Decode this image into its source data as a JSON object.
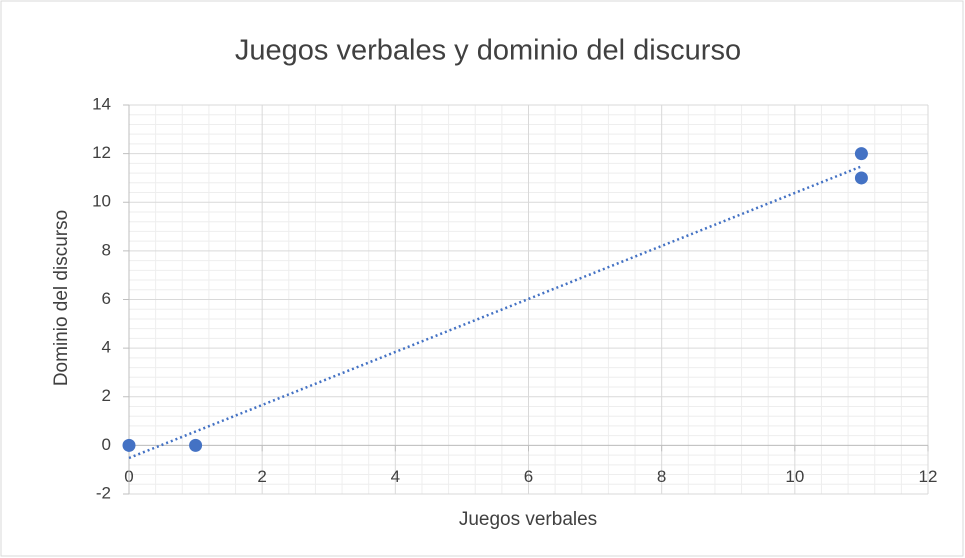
{
  "chart_data": {
    "type": "scatter",
    "title": "Juegos verbales y dominio del discurso",
    "x_label": "Juegos verbales",
    "y_label": "Dominio del discurso",
    "x": [
      0,
      1,
      11,
      11
    ],
    "values": [
      0,
      0,
      12,
      11
    ],
    "color": "#4472c4",
    "xlim": [
      0,
      12
    ],
    "xticks": [
      0,
      2,
      4,
      6,
      8,
      10,
      12
    ],
    "ylim": [
      -2,
      14
    ],
    "yticks": [
      -2,
      0,
      2,
      4,
      6,
      8,
      10,
      12,
      14
    ],
    "grid": true,
    "minor_grid": true,
    "trendline": "linear"
  }
}
